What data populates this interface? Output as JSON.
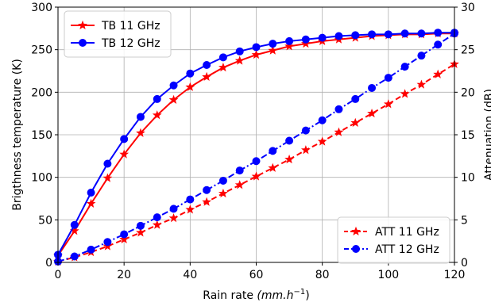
{
  "chart_data": {
    "type": "line",
    "xlabel": "Rain rate",
    "xlabel_unit": "(mm.h",
    "xlabel_unit_sup": "−1",
    "xlabel_unit_close": ")",
    "ylabel": "Brigthness temperature (K)",
    "y2label": "Attenuation (dB)",
    "xlim": [
      0,
      120
    ],
    "ylim": [
      0,
      300
    ],
    "y2lim": [
      0,
      30
    ],
    "xticks": [
      0,
      20,
      40,
      60,
      80,
      100,
      120
    ],
    "yticks": [
      0,
      50,
      100,
      150,
      200,
      250,
      300
    ],
    "y2ticks": [
      0,
      5,
      10,
      15,
      20,
      25,
      30
    ],
    "grid": true,
    "x": [
      0,
      5,
      10,
      15,
      20,
      25,
      30,
      35,
      40,
      45,
      50,
      55,
      60,
      65,
      70,
      75,
      80,
      85,
      90,
      95,
      100,
      105,
      110,
      115,
      120
    ],
    "series": [
      {
        "name": "TB 11 GHz",
        "axis": "left",
        "color": "#ff0000",
        "marker": "star",
        "dash": "solid",
        "values": [
          8,
          37,
          69,
          99,
          127,
          152,
          173,
          191,
          206,
          218,
          229,
          237,
          244,
          249,
          254,
          257,
          260,
          262,
          264,
          266,
          267,
          268,
          268,
          269,
          269
        ]
      },
      {
        "name": "TB 12 GHz",
        "axis": "left",
        "color": "#0000ff",
        "marker": "circle",
        "dash": "solid",
        "values": [
          9,
          44,
          82,
          116,
          145,
          171,
          192,
          208,
          222,
          232,
          241,
          248,
          253,
          257,
          260,
          262,
          264,
          266,
          267,
          268,
          268,
          269,
          269,
          270,
          270
        ]
      },
      {
        "name": "ATT 11 GHz",
        "axis": "right",
        "color": "#ff0000",
        "marker": "star",
        "dash": "dash",
        "values": [
          0.1,
          0.6,
          1.2,
          1.9,
          2.7,
          3.5,
          4.4,
          5.2,
          6.2,
          7.1,
          8.1,
          9.1,
          10.1,
          11.1,
          12.1,
          13.2,
          14.2,
          15.3,
          16.4,
          17.5,
          18.6,
          19.8,
          20.9,
          22.1,
          23.3
        ]
      },
      {
        "name": "ATT 12 GHz",
        "axis": "right",
        "color": "#0000ff",
        "marker": "circle",
        "dash": "dashdot",
        "values": [
          0.1,
          0.7,
          1.5,
          2.4,
          3.3,
          4.3,
          5.3,
          6.3,
          7.4,
          8.5,
          9.6,
          10.8,
          11.9,
          13.1,
          14.3,
          15.5,
          16.7,
          18.0,
          19.2,
          20.5,
          21.7,
          23.0,
          24.3,
          25.6,
          26.9
        ]
      }
    ],
    "legends": [
      {
        "placement": "top-left",
        "entries": [
          0,
          1
        ]
      },
      {
        "placement": "bottom-right",
        "entries": [
          2,
          3
        ]
      }
    ]
  }
}
